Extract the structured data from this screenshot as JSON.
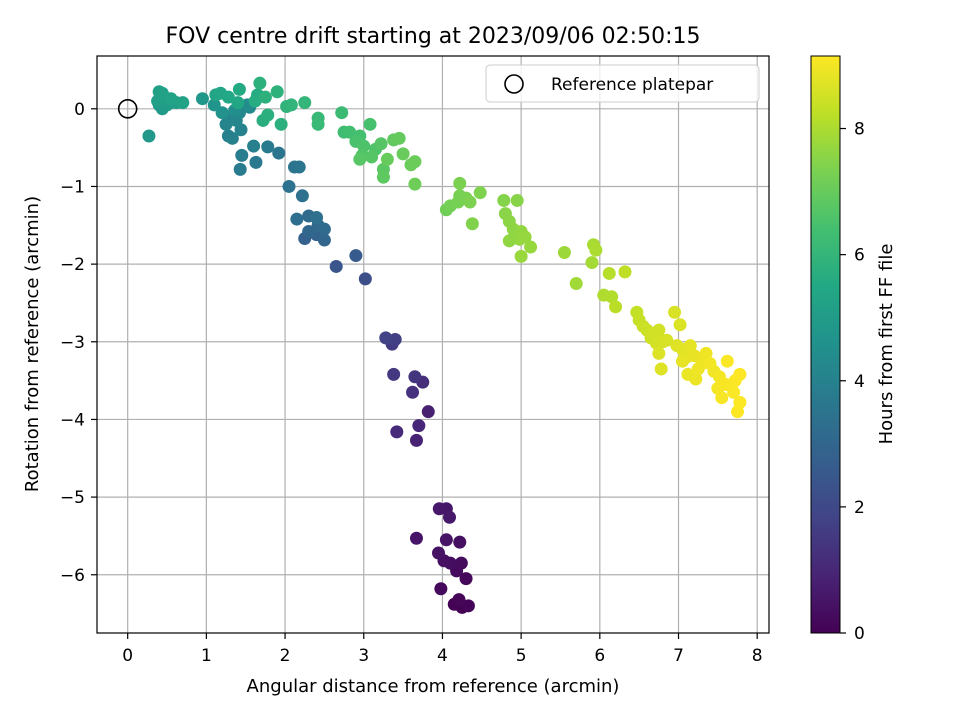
{
  "chart_data": {
    "type": "scatter",
    "title": "FOV centre drift starting at 2023/09/06 02:50:15",
    "xlabel": "Angular distance from reference (arcmin)",
    "ylabel": "Rotation from reference (arcmin)",
    "xlim": [
      -0.39,
      8.15
    ],
    "ylim": [
      -6.75,
      0.68
    ],
    "xticks": [
      0,
      1,
      2,
      3,
      4,
      5,
      6,
      7,
      8
    ],
    "yticks": [
      0,
      -1,
      -2,
      -3,
      -4,
      -5,
      -6
    ],
    "xtick_labels": [
      "0",
      "1",
      "2",
      "3",
      "4",
      "5",
      "6",
      "7",
      "8"
    ],
    "ytick_labels": [
      "0",
      "−1",
      "−2",
      "−3",
      "−4",
      "−5",
      "−6"
    ],
    "grid": true,
    "legend": {
      "placement": "top-right",
      "entries": [
        {
          "label": "Reference platepar",
          "marker": "open-circle"
        }
      ]
    },
    "reference_point": {
      "x": 0,
      "y": 0
    },
    "colorbar": {
      "label": "Hours from first FF file",
      "colormap": "viridis",
      "range": [
        0,
        9.15
      ],
      "ticks": [
        0,
        2,
        4,
        6,
        8
      ],
      "tick_labels": [
        "0",
        "2",
        "4",
        "6",
        "8"
      ]
    },
    "points": [
      [
        4.25,
        -6.42,
        0.0
      ],
      [
        4.15,
        -6.38,
        0.04
      ],
      [
        4.33,
        -6.4,
        0.08
      ],
      [
        4.21,
        -6.32,
        0.12
      ],
      [
        4.3,
        -6.05,
        0.16
      ],
      [
        3.98,
        -6.18,
        0.2
      ],
      [
        4.18,
        -5.95,
        0.24
      ],
      [
        4.24,
        -5.85,
        0.28
      ],
      [
        4.1,
        -5.85,
        0.32
      ],
      [
        4.02,
        -5.82,
        0.36
      ],
      [
        4.22,
        -5.58,
        0.4
      ],
      [
        3.95,
        -5.72,
        0.44
      ],
      [
        4.05,
        -5.55,
        0.48
      ],
      [
        3.67,
        -5.53,
        0.52
      ],
      [
        4.05,
        -5.15,
        0.56
      ],
      [
        3.96,
        -5.15,
        0.6
      ],
      [
        4.09,
        -5.26,
        0.64
      ],
      [
        3.82,
        -3.9,
        0.8
      ],
      [
        3.67,
        -4.27,
        0.9
      ],
      [
        3.7,
        -4.08,
        1.0
      ],
      [
        3.42,
        -4.16,
        1.1
      ],
      [
        3.75,
        -3.52,
        1.2
      ],
      [
        3.62,
        -3.65,
        1.3
      ],
      [
        3.65,
        -3.45,
        1.4
      ],
      [
        3.38,
        -3.42,
        1.5
      ],
      [
        3.36,
        -3.03,
        1.6
      ],
      [
        3.4,
        -2.97,
        1.7
      ],
      [
        3.28,
        -2.95,
        1.8
      ],
      [
        3.02,
        -2.19,
        2.2
      ],
      [
        2.65,
        -2.03,
        2.4
      ],
      [
        2.9,
        -1.89,
        2.6
      ],
      [
        2.25,
        -1.67,
        2.8
      ],
      [
        2.4,
        -1.62,
        2.9
      ],
      [
        2.5,
        -1.69,
        3.0
      ],
      [
        2.3,
        -1.58,
        3.05
      ],
      [
        2.42,
        -1.5,
        3.1
      ],
      [
        2.5,
        -1.55,
        3.15
      ],
      [
        2.3,
        -1.38,
        3.2
      ],
      [
        2.15,
        -1.42,
        3.3
      ],
      [
        2.4,
        -1.4,
        3.35
      ],
      [
        2.22,
        -1.12,
        3.4
      ],
      [
        2.05,
        -1.0,
        3.45
      ],
      [
        2.12,
        -0.75,
        3.5
      ],
      [
        2.18,
        -0.75,
        3.55
      ],
      [
        1.92,
        -0.57,
        3.6
      ],
      [
        1.63,
        -0.69,
        3.7
      ],
      [
        1.78,
        -0.49,
        3.75
      ],
      [
        1.43,
        -0.78,
        3.8
      ],
      [
        1.45,
        -0.6,
        3.85
      ],
      [
        1.6,
        -0.48,
        3.9
      ],
      [
        1.28,
        -0.35,
        3.95
      ],
      [
        1.33,
        -0.38,
        4.0
      ],
      [
        1.44,
        -0.27,
        4.05
      ],
      [
        1.25,
        -0.2,
        4.1
      ],
      [
        1.3,
        -0.1,
        4.15
      ],
      [
        1.38,
        -0.15,
        4.2
      ],
      [
        1.42,
        -0.05,
        4.25
      ],
      [
        1.55,
        0.02,
        4.3
      ],
      [
        1.52,
        0.05,
        4.4
      ],
      [
        1.36,
        -0.02,
        4.5
      ],
      [
        1.2,
        -0.05,
        4.6
      ],
      [
        1.1,
        0.05,
        4.7
      ],
      [
        0.95,
        0.13,
        4.8
      ],
      [
        0.27,
        -0.35,
        4.85
      ],
      [
        0.4,
        0.05,
        4.9
      ],
      [
        0.44,
        0.0,
        4.95
      ],
      [
        0.5,
        0.05,
        5.0
      ],
      [
        0.55,
        0.08,
        5.05
      ],
      [
        0.62,
        0.08,
        5.1
      ],
      [
        0.4,
        0.22,
        5.12
      ],
      [
        0.47,
        0.15,
        5.15
      ],
      [
        0.38,
        0.1,
        5.18
      ],
      [
        0.44,
        0.2,
        5.2
      ],
      [
        0.55,
        0.13,
        5.25
      ],
      [
        0.7,
        0.08,
        5.3
      ],
      [
        1.12,
        0.18,
        5.35
      ],
      [
        1.18,
        0.2,
        5.4
      ],
      [
        1.4,
        0.08,
        5.45
      ],
      [
        1.28,
        0.15,
        5.5
      ],
      [
        1.42,
        0.25,
        5.55
      ],
      [
        1.65,
        0.18,
        5.6
      ],
      [
        1.62,
        0.1,
        5.65
      ],
      [
        1.72,
        -0.15,
        5.7
      ],
      [
        1.78,
        -0.08,
        5.75
      ],
      [
        1.95,
        -0.2,
        5.78
      ],
      [
        1.68,
        0.33,
        5.8
      ],
      [
        1.75,
        0.15,
        5.82
      ],
      [
        1.9,
        0.22,
        5.85
      ],
      [
        2.02,
        0.03,
        5.9
      ],
      [
        2.08,
        0.05,
        5.95
      ],
      [
        2.25,
        0.08,
        6.0
      ],
      [
        2.42,
        -0.12,
        6.1
      ],
      [
        2.42,
        -0.2,
        6.15
      ],
      [
        2.72,
        -0.05,
        6.2
      ],
      [
        2.75,
        -0.3,
        6.3
      ],
      [
        2.82,
        -0.3,
        6.35
      ],
      [
        2.95,
        -0.35,
        6.4
      ],
      [
        3.08,
        -0.2,
        6.45
      ],
      [
        2.9,
        -0.42,
        6.5
      ],
      [
        3.0,
        -0.48,
        6.55
      ],
      [
        3.15,
        -0.52,
        6.6
      ],
      [
        2.98,
        -0.6,
        6.65
      ],
      [
        3.1,
        -0.62,
        6.7
      ],
      [
        3.22,
        -0.45,
        6.72
      ],
      [
        2.95,
        -0.65,
        6.75
      ],
      [
        3.25,
        -0.78,
        6.8
      ],
      [
        3.25,
        -0.88,
        6.85
      ],
      [
        3.38,
        -0.4,
        6.9
      ],
      [
        3.45,
        -0.38,
        6.95
      ],
      [
        3.3,
        -0.65,
        7.0
      ],
      [
        3.5,
        -0.58,
        7.02
      ],
      [
        3.6,
        -0.72,
        7.05
      ],
      [
        3.65,
        -0.68,
        7.08
      ],
      [
        3.65,
        -0.97,
        7.1
      ],
      [
        4.05,
        -1.3,
        7.15
      ],
      [
        4.1,
        -1.25,
        7.2
      ],
      [
        4.2,
        -1.2,
        7.25
      ],
      [
        4.22,
        -1.12,
        7.28
      ],
      [
        4.3,
        -1.15,
        7.3
      ],
      [
        4.22,
        -0.96,
        7.32
      ],
      [
        4.35,
        -1.2,
        7.35
      ],
      [
        4.48,
        -1.08,
        7.38
      ],
      [
        4.38,
        -1.48,
        7.4
      ],
      [
        4.78,
        -1.18,
        7.45
      ],
      [
        4.95,
        -1.18,
        7.5
      ],
      [
        4.8,
        -1.35,
        7.52
      ],
      [
        4.85,
        -1.45,
        7.55
      ],
      [
        4.9,
        -1.55,
        7.58
      ],
      [
        4.92,
        -1.62,
        7.6
      ],
      [
        4.85,
        -1.7,
        7.62
      ],
      [
        5.0,
        -1.58,
        7.65
      ],
      [
        4.98,
        -1.68,
        7.68
      ],
      [
        5.05,
        -1.65,
        7.7
      ],
      [
        5.12,
        -1.78,
        7.72
      ],
      [
        5.0,
        -1.9,
        7.75
      ],
      [
        5.55,
        -1.85,
        7.8
      ],
      [
        5.7,
        -2.25,
        7.85
      ],
      [
        5.9,
        -1.98,
        7.9
      ],
      [
        5.92,
        -1.75,
        7.95
      ],
      [
        5.95,
        -1.82,
        8.0
      ],
      [
        6.05,
        -2.4,
        8.05
      ],
      [
        6.15,
        -2.42,
        8.1
      ],
      [
        6.12,
        -2.12,
        8.15
      ],
      [
        6.2,
        -2.55,
        8.2
      ],
      [
        6.32,
        -2.1,
        8.25
      ],
      [
        6.47,
        -2.62,
        8.3
      ],
      [
        6.5,
        -2.72,
        8.35
      ],
      [
        6.55,
        -2.8,
        8.4
      ],
      [
        6.6,
        -2.85,
        8.42
      ],
      [
        6.65,
        -2.95,
        8.45
      ],
      [
        6.68,
        -2.9,
        8.5
      ],
      [
        6.75,
        -2.85,
        8.52
      ],
      [
        6.72,
        -3.02,
        8.55
      ],
      [
        6.8,
        -3.0,
        8.58
      ],
      [
        6.85,
        -2.98,
        8.6
      ],
      [
        6.95,
        -2.62,
        8.62
      ],
      [
        7.02,
        -2.78,
        8.65
      ],
      [
        6.75,
        -3.15,
        8.68
      ],
      [
        6.78,
        -3.35,
        8.7
      ],
      [
        6.98,
        -3.05,
        8.72
      ],
      [
        7.05,
        -3.1,
        8.75
      ],
      [
        7.1,
        -3.2,
        8.78
      ],
      [
        7.15,
        -3.05,
        8.8
      ],
      [
        7.05,
        -3.25,
        8.82
      ],
      [
        7.2,
        -3.18,
        8.85
      ],
      [
        7.12,
        -3.42,
        8.88
      ],
      [
        7.22,
        -3.48,
        8.9
      ],
      [
        7.25,
        -3.35,
        8.92
      ],
      [
        7.3,
        -3.28,
        8.94
      ],
      [
        7.35,
        -3.15,
        8.96
      ],
      [
        7.45,
        -3.38,
        8.98
      ],
      [
        7.4,
        -3.28,
        9.0
      ],
      [
        7.5,
        -3.6,
        9.02
      ],
      [
        7.52,
        -3.45,
        9.04
      ],
      [
        7.55,
        -3.72,
        9.06
      ],
      [
        7.6,
        -3.55,
        9.08
      ],
      [
        7.62,
        -3.25,
        9.1
      ],
      [
        7.7,
        -3.65,
        9.11
      ],
      [
        7.72,
        -3.5,
        9.12
      ],
      [
        7.75,
        -3.9,
        9.13
      ],
      [
        7.78,
        -3.78,
        9.14
      ],
      [
        7.78,
        -3.42,
        9.15
      ]
    ]
  }
}
